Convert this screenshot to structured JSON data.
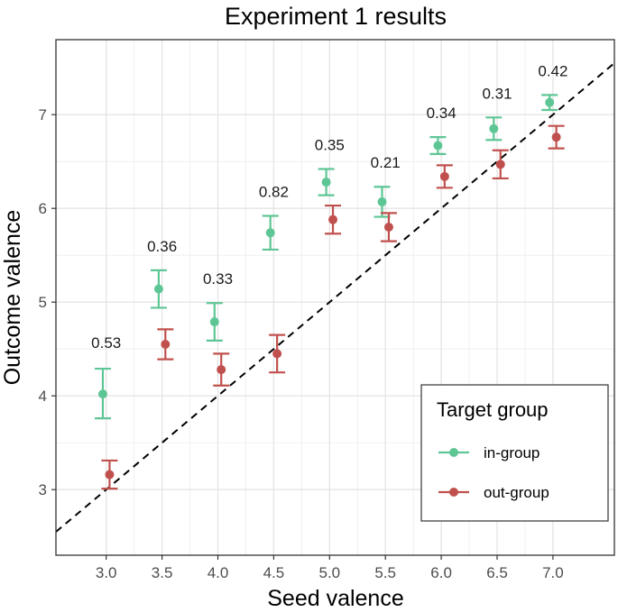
{
  "chart_data": {
    "type": "scatter",
    "title": "Experiment 1 results",
    "xlabel": "Seed valence",
    "ylabel": "Outcome valence",
    "xlim": [
      2.55,
      7.55
    ],
    "ylim": [
      2.3,
      7.8
    ],
    "x_ticks": [
      "3.0",
      "3.5",
      "4.0",
      "4.5",
      "5.0",
      "5.5",
      "6.0",
      "6.5",
      "7.0"
    ],
    "y_ticks": [
      "3",
      "4",
      "5",
      "6",
      "7"
    ],
    "grid": true,
    "reference_line": "dashed identity line (y = x)",
    "legend": {
      "title": "Target group",
      "position": "bottom-right"
    },
    "series": [
      {
        "name": "in-group",
        "color": "#5ec695",
        "x": [
          2.97,
          3.47,
          3.97,
          4.47,
          4.97,
          5.47,
          5.97,
          6.47,
          6.97
        ],
        "y": [
          4.02,
          5.14,
          4.79,
          5.74,
          6.28,
          6.07,
          6.67,
          6.85,
          7.13
        ],
        "lower": [
          3.76,
          4.94,
          4.59,
          5.56,
          6.14,
          5.91,
          6.58,
          6.73,
          7.05
        ],
        "upper": [
          4.29,
          5.34,
          4.99,
          5.92,
          6.42,
          6.23,
          6.76,
          6.97,
          7.21
        ]
      },
      {
        "name": "out-group",
        "color": "#c0504d",
        "x": [
          3.03,
          3.53,
          4.03,
          4.53,
          5.03,
          5.53,
          6.03,
          6.53,
          7.03
        ],
        "y": [
          3.16,
          4.55,
          4.28,
          4.45,
          5.88,
          5.8,
          6.34,
          6.47,
          6.76
        ],
        "lower": [
          3.01,
          4.39,
          4.11,
          4.25,
          5.73,
          5.65,
          6.22,
          6.32,
          6.64
        ],
        "upper": [
          3.31,
          4.71,
          4.45,
          4.65,
          6.03,
          5.95,
          6.46,
          6.62,
          6.88
        ]
      }
    ],
    "annotations": [
      {
        "x": 3.0,
        "y": 4.57,
        "text": "0.53"
      },
      {
        "x": 3.5,
        "y": 5.6,
        "text": "0.36"
      },
      {
        "x": 4.0,
        "y": 5.25,
        "text": "0.33"
      },
      {
        "x": 4.5,
        "y": 6.18,
        "text": "0.82"
      },
      {
        "x": 5.0,
        "y": 6.68,
        "text": "0.35"
      },
      {
        "x": 5.5,
        "y": 6.49,
        "text": "0.21"
      },
      {
        "x": 6.0,
        "y": 7.02,
        "text": "0.34"
      },
      {
        "x": 6.5,
        "y": 7.23,
        "text": "0.31"
      },
      {
        "x": 7.0,
        "y": 7.47,
        "text": "0.42"
      }
    ]
  }
}
